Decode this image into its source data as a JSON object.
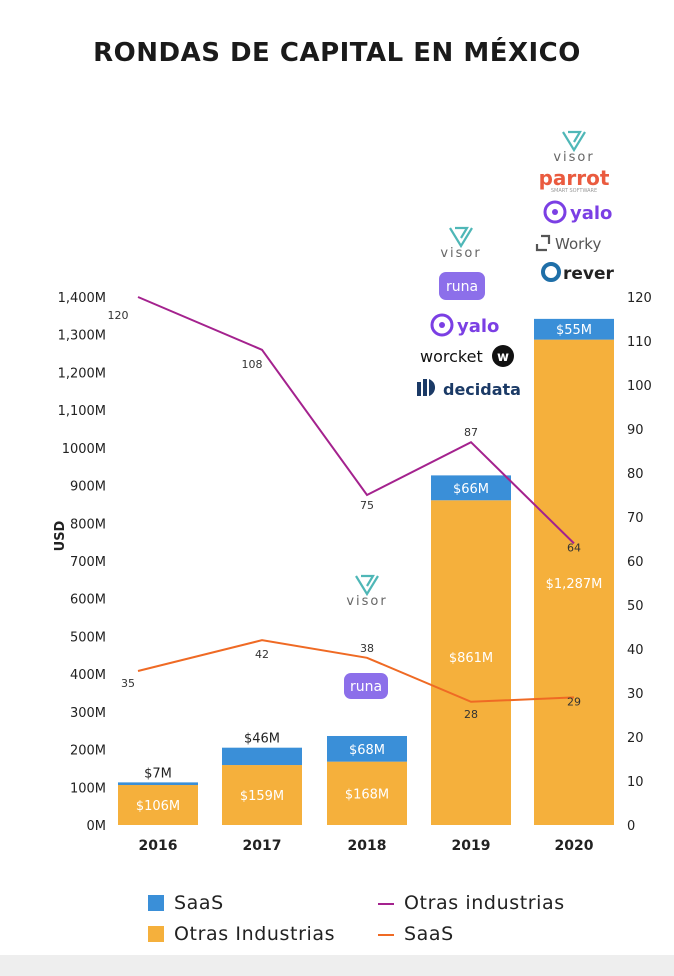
{
  "title": "RONDAS DE CAPITAL EN MÉXICO",
  "colors": {
    "saas_bar": "#3a8fd8",
    "otras_bar": "#f5b03c",
    "otras_line": "#a4228e",
    "saas_line": "#ef6a24",
    "text": "#222222",
    "runa": "#8c6fea",
    "yalo": "#7b3fe4",
    "visor": "#4fb7b7",
    "parrot": "#ea5b3f",
    "worky": "#555555",
    "rever": "#222222",
    "decidata": "#1b3a66"
  },
  "chart_data": {
    "type": "bar",
    "title": "RONDAS DE CAPITAL EN MÉXICO",
    "ylabel": "USD",
    "categories": [
      "2016",
      "2017",
      "2018",
      "2019",
      "2020"
    ],
    "stacked": true,
    "left_axis": {
      "ylim": [
        0,
        1400
      ],
      "ticks": [
        {
          "value": 0,
          "label": "0M"
        },
        {
          "value": 100,
          "label": "100M"
        },
        {
          "value": 200,
          "label": "200M"
        },
        {
          "value": 300,
          "label": "300M"
        },
        {
          "value": 400,
          "label": "400M"
        },
        {
          "value": 500,
          "label": "500M"
        },
        {
          "value": 600,
          "label": "600M"
        },
        {
          "value": 700,
          "label": "700M"
        },
        {
          "value": 800,
          "label": "800M"
        },
        {
          "value": 900,
          "label": "900M"
        },
        {
          "value": 1000,
          "label": "1000M"
        },
        {
          "value": 1100,
          "label": "1,100M"
        },
        {
          "value": 1200,
          "label": "1,200M"
        },
        {
          "value": 1300,
          "label": "1,300M"
        },
        {
          "value": 1400,
          "label": "1,400M"
        }
      ]
    },
    "right_axis": {
      "ylim": [
        0,
        120
      ],
      "ticks": [
        "0",
        "10",
        "20",
        "30",
        "40",
        "50",
        "60",
        "70",
        "80",
        "90",
        "100",
        "110",
        "120"
      ]
    },
    "series": [
      {
        "name": "Otras Industrias",
        "kind": "bar",
        "values": [
          106,
          159,
          168,
          861,
          1287
        ],
        "labels": [
          "$106M",
          "$159M",
          "$168M",
          "$861M",
          "$1,287M"
        ]
      },
      {
        "name": "SaaS",
        "kind": "bar",
        "values": [
          7,
          46,
          68,
          66,
          55
        ],
        "labels": [
          "$7M",
          "$46M",
          "$68M",
          "$66M",
          "$55M"
        ]
      },
      {
        "name": "Otras industrias",
        "kind": "line",
        "axis": "right",
        "values": [
          120,
          108,
          75,
          87,
          64
        ],
        "labels": [
          "120",
          "108",
          "75",
          "87",
          "64"
        ]
      },
      {
        "name": "SaaS",
        "kind": "line",
        "axis": "right",
        "values": [
          35,
          42,
          38,
          28,
          29
        ],
        "labels": [
          "35",
          "42",
          "38",
          "28",
          "29"
        ]
      }
    ]
  },
  "legend": {
    "saas_bar": "SaaS",
    "otras_bar": "Otras Industrias",
    "otras_line": "Otras industrias",
    "saas_line": "SaaS"
  },
  "logos": {
    "visor": "visor",
    "runa": "runa",
    "yalo": "yalo",
    "worcket": "worcket",
    "decidata": "decidata",
    "parrot": "parrot",
    "parrot_sub": "SMART SOFTWARE",
    "worky": "Worky",
    "rever": "rever"
  }
}
